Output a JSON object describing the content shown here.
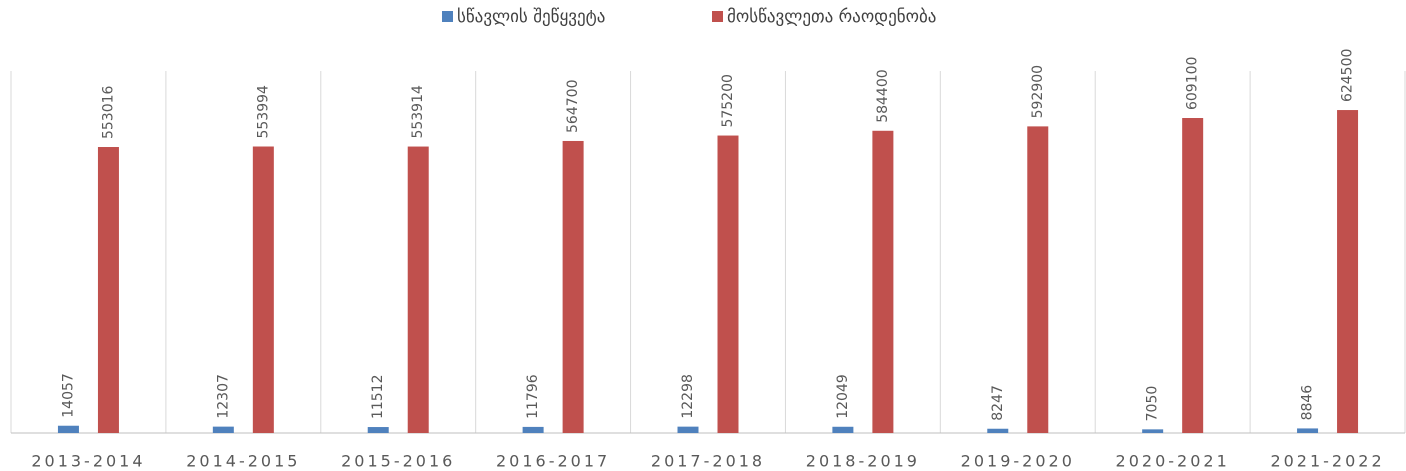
{
  "chart_data": {
    "type": "bar",
    "categories": [
      "2013-2014",
      "2014-2015",
      "2015-2016",
      "2016-2017",
      "2017-2018",
      "2018-2019",
      "2019-2020",
      "2020-2021",
      "2021-2022"
    ],
    "series": [
      {
        "name": "სწავლის შეწყვეტა",
        "color": "#4f81bd",
        "values": [
          14057,
          12307,
          11512,
          11796,
          12298,
          12049,
          8247,
          7050,
          8846
        ]
      },
      {
        "name": "მოსწავლეთა რაოდენობა",
        "color": "#c0504d",
        "values": [
          553016,
          553994,
          553914,
          564700,
          575200,
          584400,
          592900,
          609100,
          624500
        ]
      }
    ],
    "ylim": [
      0,
      700000
    ],
    "legend": "top"
  }
}
